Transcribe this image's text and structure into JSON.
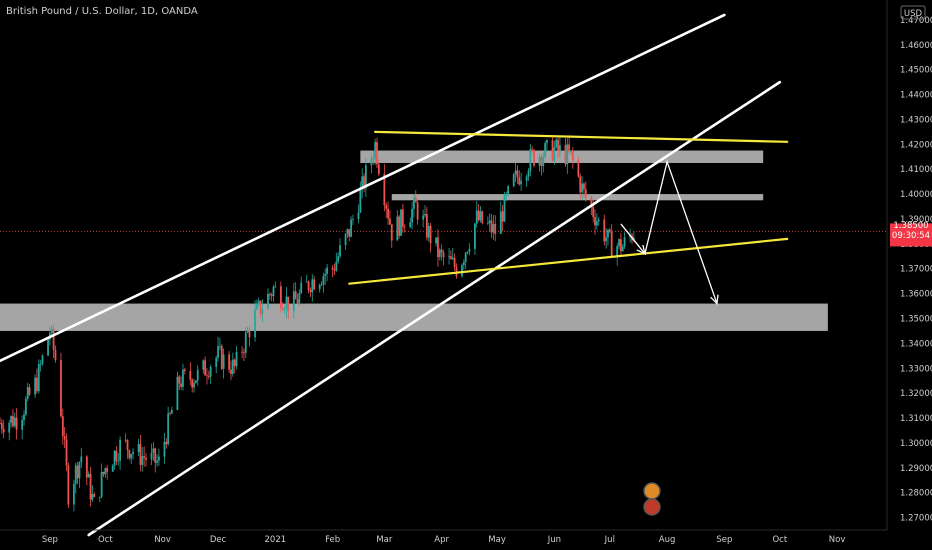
{
  "header": {
    "symbol_title": "British Pound / U.S. Dollar, 1D, OANDA",
    "currency": "USD"
  },
  "price_label": {
    "price": "1.38500",
    "countdown": "09:30:54",
    "color": "#f23645"
  },
  "colors": {
    "background": "#000000",
    "up_candle": "#26a69a",
    "down_candle": "#ef5350",
    "channel_line": "#ffffff",
    "triangle_line": "#f5e83b",
    "zone_fill": "#b3b3b3",
    "projection_arrow": "#ffffff"
  },
  "chart_data": {
    "type": "candlestick",
    "title": "British Pound / U.S. Dollar, 1D, OANDA",
    "xlabel": "",
    "ylabel": "",
    "y_ticks": [
      "1.27000",
      "1.28000",
      "1.29000",
      "1.30000",
      "1.31000",
      "1.32000",
      "1.33000",
      "1.34000",
      "1.35000",
      "1.36000",
      "1.37000",
      "1.38000",
      "1.39000",
      "1.40000",
      "1.41000",
      "1.42000",
      "1.43000",
      "1.44000",
      "1.45000",
      "1.46000",
      "1.47000"
    ],
    "ylim": [
      1.265,
      1.478
    ],
    "x_ticks": [
      "Sep",
      "Oct",
      "Nov",
      "Dec",
      "2021",
      "Feb",
      "Mar",
      "Apr",
      "May",
      "Jun",
      "Jul",
      "Aug",
      "Sep",
      "Oct",
      "Nov"
    ],
    "x_tick_dates": [
      "2020-09-01",
      "2020-10-01",
      "2020-11-01",
      "2020-12-01",
      "2021-01-01",
      "2021-02-01",
      "2021-03-01",
      "2021-04-01",
      "2021-05-01",
      "2021-06-01",
      "2021-07-01",
      "2021-08-01",
      "2021-09-01",
      "2021-10-01",
      "2021-11-01"
    ],
    "xlim": [
      "2020-08-05",
      "2021-11-28"
    ],
    "grid": false,
    "price_path": [
      [
        "2020-08-05",
        1.308
      ],
      [
        "2020-08-15",
        1.31
      ],
      [
        "2020-08-25",
        1.325
      ],
      [
        "2020-09-01",
        1.345
      ],
      [
        "2020-09-05",
        1.33
      ],
      [
        "2020-09-11",
        1.28
      ],
      [
        "2020-09-18",
        1.295
      ],
      [
        "2020-09-25",
        1.275
      ],
      [
        "2020-10-01",
        1.29
      ],
      [
        "2020-10-10",
        1.3
      ],
      [
        "2020-10-20",
        1.295
      ],
      [
        "2020-10-30",
        1.292
      ],
      [
        "2020-11-10",
        1.325
      ],
      [
        "2020-11-20",
        1.327
      ],
      [
        "2020-12-01",
        1.335
      ],
      [
        "2020-12-10",
        1.33
      ],
      [
        "2020-12-20",
        1.35
      ],
      [
        "2020-12-31",
        1.362
      ],
      [
        "2021-01-10",
        1.355
      ],
      [
        "2021-01-20",
        1.365
      ],
      [
        "2021-02-01",
        1.37
      ],
      [
        "2021-02-10",
        1.385
      ],
      [
        "2021-02-24",
        1.42
      ],
      [
        "2021-03-05",
        1.385
      ],
      [
        "2021-03-18",
        1.395
      ],
      [
        "2021-03-31",
        1.375
      ],
      [
        "2021-04-10",
        1.37
      ],
      [
        "2021-04-20",
        1.39
      ],
      [
        "2021-04-30",
        1.385
      ],
      [
        "2021-05-10",
        1.405
      ],
      [
        "2021-05-20",
        1.415
      ],
      [
        "2021-06-01",
        1.418
      ],
      [
        "2021-06-10",
        1.415
      ],
      [
        "2021-06-17",
        1.4
      ],
      [
        "2021-06-24",
        1.39
      ],
      [
        "2021-07-01",
        1.38
      ],
      [
        "2021-07-08",
        1.379
      ],
      [
        "2021-07-14",
        1.385
      ]
    ],
    "annotations": {
      "channel_lower": [
        [
          "2020-09-22",
          1.263
        ],
        [
          "2021-10-01",
          1.445
        ]
      ],
      "channel_mid": [
        [
          "2020-08-05",
          1.333
        ],
        [
          "2021-09-01",
          1.472
        ]
      ],
      "triangle_top": [
        [
          "2021-02-24",
          1.425
        ],
        [
          "2021-10-05",
          1.421
        ]
      ],
      "triangle_bottom": [
        [
          "2021-02-10",
          1.364
        ],
        [
          "2021-10-05",
          1.382
        ]
      ],
      "zones": [
        {
          "from": [
            "2021-02-16",
            1.4175
          ],
          "to": [
            "2021-09-22",
            1.4125
          ]
        },
        {
          "from": [
            "2021-03-05",
            1.4
          ],
          "to": [
            "2021-09-22",
            1.3975
          ]
        },
        {
          "from": [
            "2020-08-05",
            1.356
          ],
          "to": [
            "2021-10-27",
            1.345
          ]
        }
      ],
      "projection": [
        [
          "2021-07-07",
          1.388
        ],
        [
          "2021-07-20",
          1.376
        ],
        [
          "2021-08-01",
          1.413
        ],
        [
          "2021-08-28",
          1.356
        ]
      ]
    }
  }
}
